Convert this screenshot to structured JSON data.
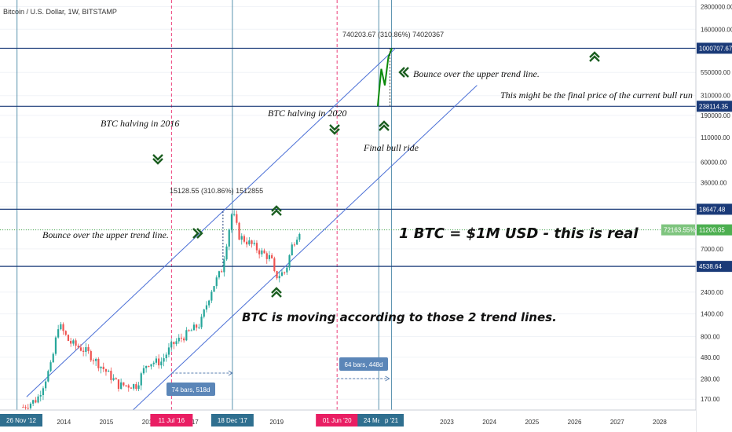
{
  "title": "Bitcoin / U.S. Dollar, 1W, BITSTAMP",
  "colors": {
    "up": "#26a69a",
    "down": "#ef5350",
    "forecast": "#0b8a0b",
    "hline": "#1a3a78",
    "trend": "#4a6fd6",
    "current": "#4caf50",
    "vline_red": "#e91e63",
    "vline_blue": "#3d7fa0",
    "arrow": "#1b5e20"
  },
  "chart_data": {
    "type": "candlestick",
    "y_scale": "log",
    "ylim": [
      130,
      3300000
    ],
    "y_ticks": [
      "2800000.00",
      "1600000.00",
      "1000707.67",
      "550000.00",
      "310000.00",
      "238114.35",
      "190000.00",
      "110000.00",
      "60000.00",
      "36000.00",
      "20000.00",
      "18647.48",
      "11200.85",
      "7000.00",
      "4538.64",
      "2400.00",
      "1400.00",
      "800.00",
      "480.00",
      "280.00",
      "170.00"
    ],
    "x_ticks": [
      "2014",
      "2015",
      "2016",
      "2017",
      "2019",
      "202",
      "202",
      "2023",
      "2024",
      "2025",
      "2026",
      "2027",
      "2028"
    ],
    "date_markers": [
      {
        "label": "26 Nov '12",
        "color": "blue"
      },
      {
        "label": "11 Jul '16",
        "color": "red"
      },
      {
        "label": "18 Dec '17",
        "color": "blue"
      },
      {
        "label": "01 Jun '20",
        "color": "red"
      },
      {
        "label": "24 May '21",
        "color": "blue"
      },
      {
        "label": "p '21",
        "color": "blue"
      }
    ],
    "horizontal_levels": [
      1000707.67,
      238114.35,
      18647.48,
      4538.64
    ],
    "current_price": 11200.85,
    "current_change": "72163.55%",
    "measurements": [
      {
        "label": "15128.55 (310.86%) 1512855"
      },
      {
        "label": "740203.67 (310.86%) 74020367"
      }
    ],
    "bar_counts": [
      "74 bars, 518d",
      "64 bars, 448d"
    ],
    "trend_lines": [
      {
        "from": [
          "2013-02",
          180
        ],
        "to": [
          "2021-10",
          1000000
        ]
      },
      {
        "from": [
          "2015-08",
          130
        ],
        "to": [
          "2023-09",
          400000
        ]
      }
    ],
    "price_path": [
      {
        "date": "2013-01",
        "value": 140
      },
      {
        "date": "2013-05",
        "value": 170
      },
      {
        "date": "2013-09",
        "value": 400
      },
      {
        "date": "2013-11",
        "value": 1100
      },
      {
        "date": "2014-02",
        "value": 700
      },
      {
        "date": "2014-07",
        "value": 550
      },
      {
        "date": "2014-12",
        "value": 350
      },
      {
        "date": "2015-04",
        "value": 240
      },
      {
        "date": "2015-09",
        "value": 240
      },
      {
        "date": "2015-12",
        "value": 420
      },
      {
        "date": "2016-04",
        "value": 430
      },
      {
        "date": "2016-07",
        "value": 650
      },
      {
        "date": "2016-12",
        "value": 900
      },
      {
        "date": "2017-03",
        "value": 1100
      },
      {
        "date": "2017-06",
        "value": 2500
      },
      {
        "date": "2017-09",
        "value": 4200
      },
      {
        "date": "2017-12",
        "value": 18000
      },
      {
        "date": "2018-02",
        "value": 9500
      },
      {
        "date": "2018-05",
        "value": 8000
      },
      {
        "date": "2018-08",
        "value": 6500
      },
      {
        "date": "2018-11",
        "value": 5500
      },
      {
        "date": "2018-12",
        "value": 3500
      },
      {
        "date": "2019-03",
        "value": 4000
      },
      {
        "date": "2019-05",
        "value": 8000
      },
      {
        "date": "2019-07",
        "value": 11200
      }
    ],
    "forecast_path": [
      {
        "date": "2021-05",
        "value": 238114
      },
      {
        "date": "2021-06",
        "value": 600000
      },
      {
        "date": "2021-07",
        "value": 400000
      },
      {
        "date": "2021-08",
        "value": 800000
      },
      {
        "date": "2021-09",
        "value": 1000707
      }
    ]
  },
  "annotations": {
    "halving_2016": "BTC halving in 2016",
    "halving_2020": "BTC halving in 2020",
    "final_bull_ride": "Final bull ride",
    "bounce_upper_1": "Bounce over the upper trend line.",
    "bounce_upper_2": "Bounce over the upper trend line.",
    "final_price": "This might be the final price of the current bull run",
    "main_claim": "1 BTC = $1M USD - this is real",
    "trend_claim": "BTC is moving according to those 2 trend lines."
  }
}
